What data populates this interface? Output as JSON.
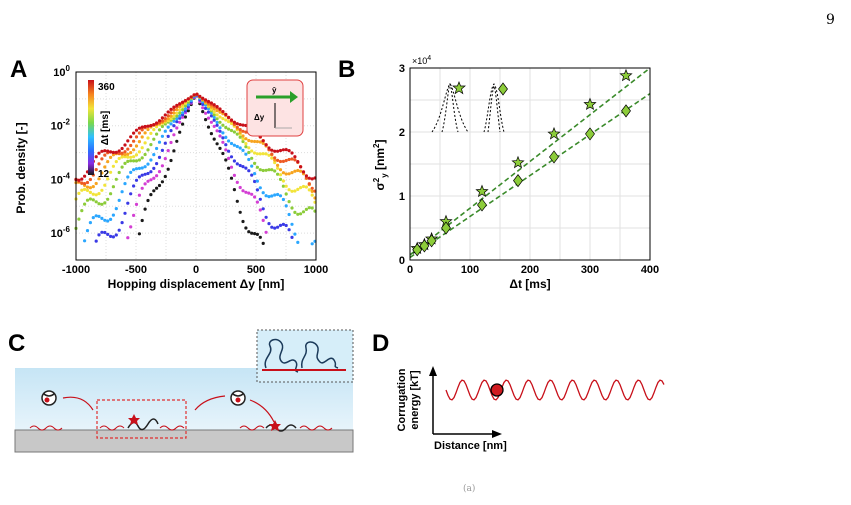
{
  "page_number": "9",
  "footer_mark": "(a)",
  "panels": {
    "A": {
      "letter": "A",
      "ylabel": "Prob. density [-]",
      "xlabel": "Hopping displacement Δy [nm]",
      "colorbar": {
        "label": "Δt [ms]",
        "max": "360",
        "min": "12"
      },
      "inset": {
        "top_label": "ŷ",
        "side_label": "Δy"
      }
    },
    "B": {
      "letter": "B",
      "ylabel": "σ",
      "ylabel_sup": "2",
      "ylabel_sub": "y",
      "ylabel_unit": "[nm",
      "ylabel_unit_sup": "2",
      "ylabel_unit_end": "]",
      "xlabel": "Δt [ms]",
      "exponent": "×10",
      "exponent_sup": "4"
    },
    "C": {
      "letter": "C"
    },
    "D": {
      "letter": "D",
      "ylabel_line1": "Corrugation",
      "ylabel_line2": "energy [kT]",
      "xlabel": "Distance [nm]"
    }
  },
  "chart_data": [
    {
      "type": "scatter",
      "panel": "A",
      "xlim": [
        -1000,
        1000
      ],
      "ylim_log10": [
        -7,
        0
      ],
      "x_ticks": [
        "-1000",
        "-500",
        "0",
        "500",
        "1000"
      ],
      "y_ticks": [
        {
          "base": "10",
          "exp": "0"
        },
        {
          "base": "10",
          "exp": "-2"
        },
        {
          "base": "10",
          "exp": "-4"
        },
        {
          "base": "10",
          "exp": "-6"
        }
      ],
      "grid": true,
      "colormap_range_ms": [
        12,
        360
      ],
      "series": [
        {
          "dt": 12,
          "color": "#1a1a1a",
          "sigma": 95
        },
        {
          "dt": 24,
          "color": "#d43fd4",
          "sigma": 120
        },
        {
          "dt": 36,
          "color": "#3a3ae6",
          "sigma": 145
        },
        {
          "dt": 60,
          "color": "#2ba7ff",
          "sigma": 175
        },
        {
          "dt": 120,
          "color": "#8ccc3a",
          "sigma": 215
        },
        {
          "dt": 180,
          "color": "#f2e43a",
          "sigma": 250
        },
        {
          "dt": 240,
          "color": "#f7a41f",
          "sigma": 285
        },
        {
          "dt": 300,
          "color": "#ee5a24",
          "sigma": 315
        },
        {
          "dt": 360,
          "color": "#c8101a",
          "sigma": 345
        }
      ]
    },
    {
      "type": "scatter",
      "panel": "B",
      "xlim": [
        0,
        400
      ],
      "ylim": [
        0,
        3
      ],
      "y_unit_scale": "x10^4 nm^2",
      "x_ticks": [
        "0",
        "100",
        "200",
        "300",
        "400"
      ],
      "y_ticks": [
        "0",
        "1",
        "2",
        "3"
      ],
      "grid": true,
      "series": [
        {
          "marker": "star",
          "x": [
            12,
            24,
            36,
            60,
            120,
            180,
            240,
            300,
            360
          ],
          "y": [
            0.18,
            0.24,
            0.33,
            0.6,
            1.07,
            1.52,
            1.97,
            2.43,
            2.88
          ]
        },
        {
          "marker": "diamond",
          "x": [
            12,
            24,
            36,
            60,
            120,
            180,
            240,
            300,
            360
          ],
          "y": [
            0.16,
            0.22,
            0.3,
            0.5,
            0.86,
            1.24,
            1.61,
            1.97,
            2.33
          ]
        }
      ],
      "fits": [
        {
          "x": [
            0,
            400
          ],
          "y": [
            0.08,
            3.2
          ]
        },
        {
          "x": [
            0,
            400
          ],
          "y": [
            0.04,
            2.6
          ]
        }
      ]
    }
  ]
}
